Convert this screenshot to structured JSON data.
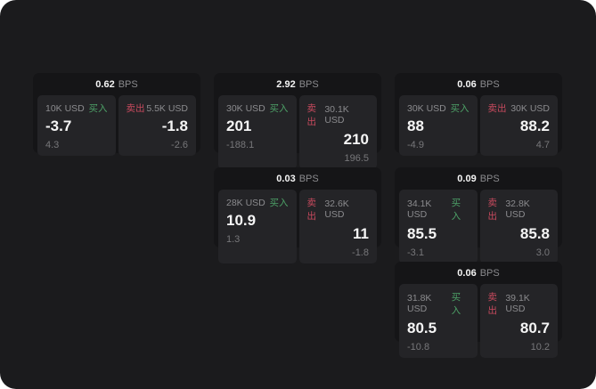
{
  "labels": {
    "bps": "BPS",
    "buy": "买入",
    "sell": "卖出"
  },
  "colors": {
    "screen_bg": "#1b1b1d",
    "card_bg": "#151517",
    "panel_bg": "#242427",
    "buy_green": "#4da167",
    "sell_red": "#c84a5e",
    "text_primary": "#f5f5f5",
    "text_secondary": "#8b8b8e"
  },
  "cards": [
    {
      "grid": {
        "row": 0,
        "col": 0
      },
      "bps": "0.62",
      "buy": {
        "size": "10K USD",
        "value": "-3.7",
        "change": "4.3"
      },
      "sell": {
        "size": "5.5K USD",
        "value": "-1.8",
        "change": "-2.6"
      }
    },
    {
      "grid": {
        "row": 0,
        "col": 1
      },
      "bps": "2.92",
      "buy": {
        "size": "30K USD",
        "value": "201",
        "change": "-188.1"
      },
      "sell": {
        "size": "30.1K USD",
        "value": "210",
        "change": "196.5"
      }
    },
    {
      "grid": {
        "row": 0,
        "col": 2
      },
      "bps": "0.06",
      "buy": {
        "size": "30K USD",
        "value": "88",
        "change": "-4.9"
      },
      "sell": {
        "size": "30K USD",
        "value": "88.2",
        "change": "4.7"
      }
    },
    {
      "grid": {
        "row": 1,
        "col": 1
      },
      "bps": "0.03",
      "buy": {
        "size": "28K USD",
        "value": "10.9",
        "change": "1.3"
      },
      "sell": {
        "size": "32.6K USD",
        "value": "11",
        "change": "-1.8"
      }
    },
    {
      "grid": {
        "row": 1,
        "col": 2
      },
      "bps": "0.09",
      "buy": {
        "size": "34.1K USD",
        "value": "85.5",
        "change": "-3.1"
      },
      "sell": {
        "size": "32.8K USD",
        "value": "85.8",
        "change": "3.0"
      }
    },
    {
      "grid": {
        "row": 2,
        "col": 2
      },
      "bps": "0.06",
      "buy": {
        "size": "31.8K USD",
        "value": "80.5",
        "change": "-10.8"
      },
      "sell": {
        "size": "39.1K USD",
        "value": "80.7",
        "change": "10.2"
      }
    }
  ]
}
